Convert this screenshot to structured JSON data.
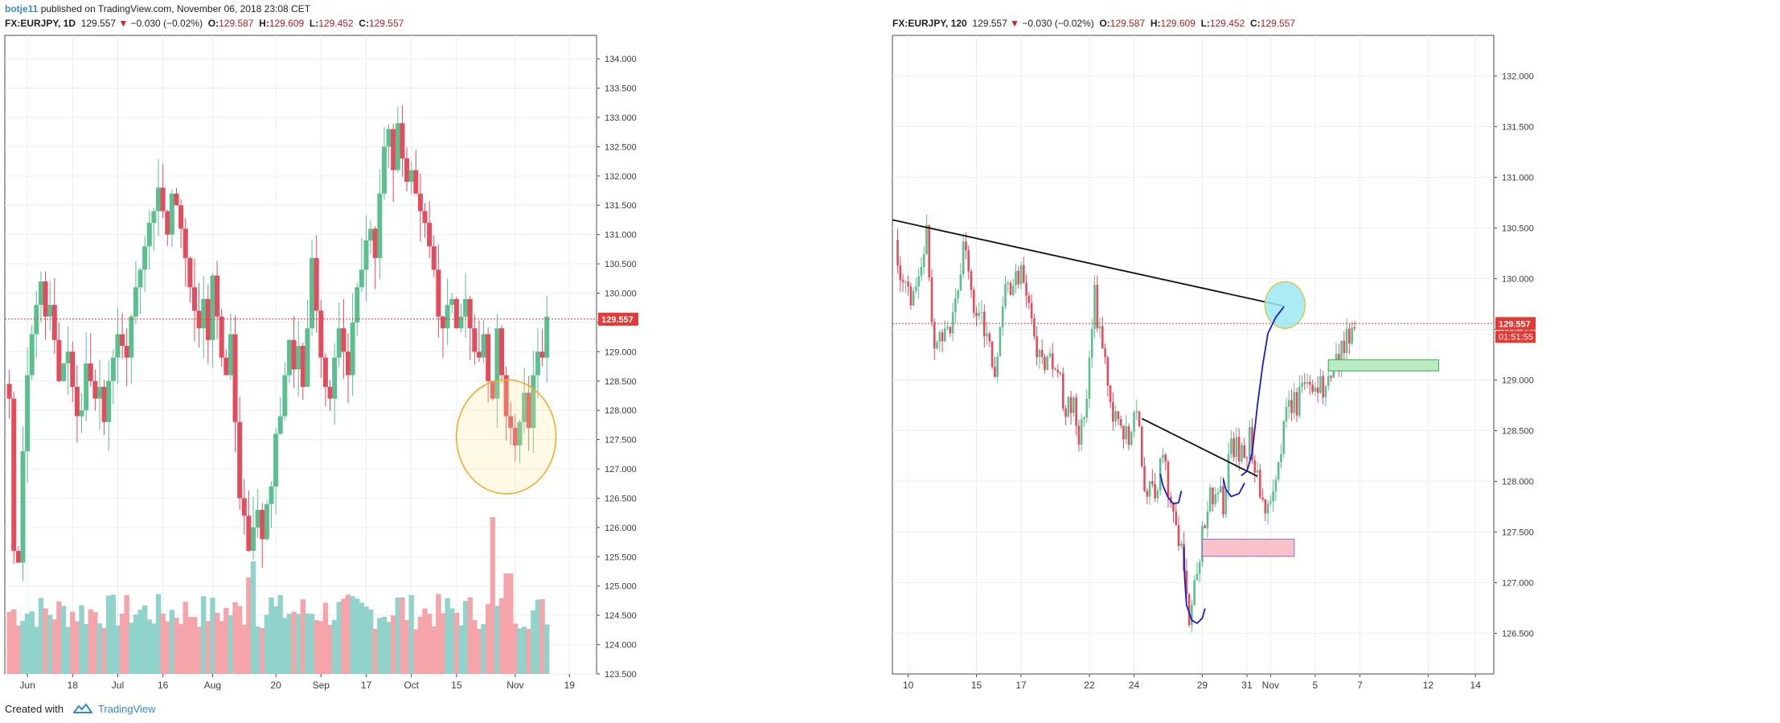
{
  "header": {
    "user": "botje11",
    "published_text": "published on TradingView.com, November 06, 2018 23:08 CET"
  },
  "footer": {
    "created_with": "Created with",
    "brand": "TradingView"
  },
  "colors": {
    "up": "#5bbf8f",
    "down": "#e44b5c",
    "vol_up": "#8fd3cb",
    "vol_down": "#f5a4aa",
    "price_line": "#e53935",
    "grid": "#e9eef3",
    "border": "#4a4a4a",
    "circle_yellow": "#f5a623",
    "circle_cyan": "#9be7f5",
    "pen_blue": "#1a1ad6",
    "box_pink": "#f8c2c8",
    "box_green": "#b9ecc0"
  },
  "panels": [
    {
      "symbol": "FX:EURJPY, 1D",
      "last": "129.557",
      "change": "−0.030 (−0.02%)",
      "ohlc": [
        {
          "label": "O:",
          "value": "129.587"
        },
        {
          "label": "H:",
          "value": "129.609"
        },
        {
          "label": "L:",
          "value": "129.452"
        },
        {
          "label": "C:",
          "value": "129.557"
        }
      ]
    },
    {
      "symbol": "FX:EURJPY, 120",
      "last": "129.557",
      "change": "−0.030 (−0.02%)",
      "ohlc": [
        {
          "label": "O:",
          "value": "129.587"
        },
        {
          "label": "H:",
          "value": "129.609"
        },
        {
          "label": "L:",
          "value": "129.452"
        },
        {
          "label": "C:",
          "value": "129.557"
        }
      ]
    }
  ],
  "chart_data": [
    {
      "type": "candlestick",
      "title": "FX:EURJPY, 1D",
      "ylim": [
        123.5,
        134.4
      ],
      "y_ticks": [
        "134.000",
        "133.500",
        "133.000",
        "132.500",
        "132.000",
        "131.500",
        "131.000",
        "130.500",
        "130.000",
        "129.500",
        "129.000",
        "128.500",
        "128.000",
        "127.500",
        "127.000",
        "126.500",
        "126.000",
        "125.500",
        "125.000",
        "124.500",
        "124.000",
        "123.500"
      ],
      "x_ticks": [
        {
          "label": "Jun",
          "index": 4
        },
        {
          "label": "18",
          "index": 14
        },
        {
          "label": "Jul",
          "index": 24
        },
        {
          "label": "16",
          "index": 34
        },
        {
          "label": "Aug",
          "index": 45
        },
        {
          "label": "20",
          "index": 59
        },
        {
          "label": "Sep",
          "index": 69
        },
        {
          "label": "17",
          "index": 79
        },
        {
          "label": "Oct",
          "index": 89
        },
        {
          "label": "15",
          "index": 99
        },
        {
          "label": "Nov",
          "index": 112
        },
        {
          "label": "19",
          "index": 124
        }
      ],
      "x_range": [
        -1,
        130
      ],
      "last_price": 129.557,
      "last_price_label": "129.557",
      "closes": [
        128.2,
        125.6,
        125.4,
        127.3,
        128.6,
        129.3,
        129.8,
        130.2,
        129.6,
        129.8,
        129.2,
        128.5,
        128.8,
        129.0,
        128.4,
        127.9,
        128.0,
        128.8,
        128.5,
        128.2,
        128.4,
        127.8,
        128.5,
        128.9,
        129.3,
        129.1,
        128.9,
        129.6,
        130.1,
        130.4,
        130.8,
        131.2,
        131.4,
        131.8,
        131.4,
        131.0,
        131.7,
        131.5,
        131.1,
        130.6,
        130.1,
        129.7,
        129.4,
        129.9,
        129.2,
        130.3,
        129.6,
        128.9,
        128.6,
        129.3,
        127.8,
        126.5,
        126.2,
        125.6,
        126.0,
        126.3,
        125.8,
        126.4,
        126.7,
        127.6,
        127.9,
        128.6,
        129.2,
        128.7,
        129.1,
        128.4,
        129.4,
        130.6,
        129.7,
        128.9,
        128.4,
        128.2,
        128.9,
        129.4,
        129.0,
        128.6,
        129.5,
        130.1,
        130.4,
        130.9,
        131.1,
        130.6,
        131.7,
        132.5,
        132.8,
        132.1,
        132.9,
        132.3,
        131.9,
        132.1,
        131.7,
        131.4,
        131.2,
        130.8,
        130.4,
        129.6,
        129.4,
        129.8,
        129.9,
        129.4,
        129.6,
        129.9,
        129.4,
        129.0,
        128.9,
        129.3,
        128.5,
        128.2,
        129.4,
        128.6,
        127.9,
        127.7,
        127.4,
        127.8,
        128.3,
        127.7,
        128.6,
        129.0,
        128.9,
        129.6
      ]
    },
    {
      "type": "candlestick",
      "title": "FX:EURJPY, 120",
      "ylim": [
        126.1,
        132.4
      ],
      "y_ticks": [
        "132.000",
        "131.500",
        "131.000",
        "130.500",
        "130.000",
        "129.500",
        "129.000",
        "128.500",
        "128.000",
        "127.500",
        "127.000",
        "126.500"
      ],
      "x_ticks": [
        {
          "label": "10",
          "index": 4
        },
        {
          "label": "15",
          "index": 30
        },
        {
          "label": "17",
          "index": 47
        },
        {
          "label": "22",
          "index": 73
        },
        {
          "label": "24",
          "index": 90
        },
        {
          "label": "29",
          "index": 116
        },
        {
          "label": "31",
          "index": 133
        },
        {
          "label": "Nov",
          "index": 142
        },
        {
          "label": "5",
          "index": 159
        },
        {
          "label": "7",
          "index": 176
        },
        {
          "label": "12",
          "index": 202
        },
        {
          "label": "14",
          "index": 220
        }
      ],
      "x_range": [
        -2,
        227
      ],
      "last_price": 129.557,
      "last_price_label": "129.557",
      "countdown_label": "01:51:55",
      "anchors": [
        [
          0,
          130.0
        ],
        [
          5,
          129.8
        ],
        [
          11,
          130.4
        ],
        [
          14,
          129.2
        ],
        [
          20,
          129.6
        ],
        [
          25,
          130.3
        ],
        [
          29,
          129.8
        ],
        [
          33,
          129.5
        ],
        [
          37,
          129.1
        ],
        [
          41,
          129.9
        ],
        [
          47,
          130.0
        ],
        [
          51,
          129.6
        ],
        [
          55,
          129.1
        ],
        [
          60,
          129.2
        ],
        [
          64,
          128.7
        ],
        [
          67,
          128.8
        ],
        [
          69,
          128.3
        ],
        [
          72,
          128.9
        ],
        [
          75,
          129.8
        ],
        [
          78,
          129.3
        ],
        [
          82,
          128.7
        ],
        [
          88,
          128.4
        ],
        [
          91,
          128.8
        ],
        [
          94,
          128.0
        ],
        [
          98,
          127.8
        ],
        [
          101,
          128.3
        ],
        [
          104,
          127.7
        ],
        [
          108,
          127.3
        ],
        [
          111,
          126.7
        ],
        [
          114,
          127.2
        ],
        [
          117,
          127.6
        ],
        [
          121,
          128.0
        ],
        [
          124,
          127.8
        ],
        [
          127,
          128.3
        ],
        [
          132,
          128.3
        ],
        [
          134,
          128.4
        ],
        [
          137,
          128.1
        ],
        [
          140,
          127.6
        ],
        [
          143,
          128.0
        ],
        [
          146,
          128.4
        ],
        [
          149,
          128.7
        ],
        [
          153,
          128.8
        ],
        [
          155,
          129.1
        ],
        [
          160,
          128.9
        ],
        [
          165,
          129.0
        ],
        [
          168,
          129.2
        ],
        [
          170,
          129.4
        ],
        [
          174,
          129.6
        ]
      ]
    }
  ]
}
